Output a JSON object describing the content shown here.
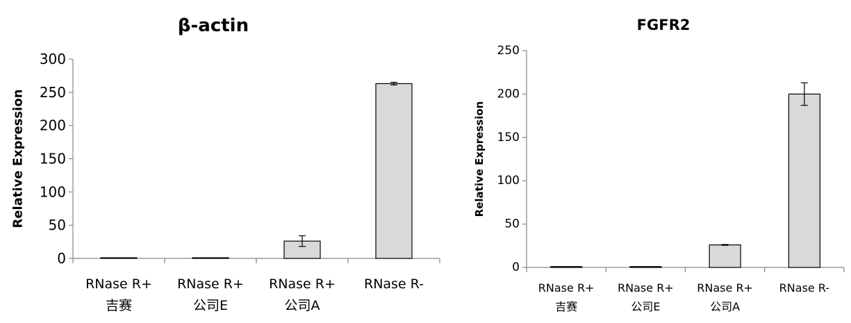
{
  "chart_data": [
    {
      "type": "bar",
      "title": "β-actin",
      "ylabel": "Relative Expression",
      "xlabel": "",
      "categories": [
        [
          "RNase R+",
          "吉赛"
        ],
        [
          "RNase R+",
          "公司E"
        ],
        [
          "RNase R+",
          "公司A"
        ],
        [
          "RNase R-"
        ]
      ],
      "values": [
        1,
        1,
        26,
        263
      ],
      "errors": [
        0,
        0,
        8,
        2
      ],
      "ylim": [
        0,
        300
      ],
      "yticks": [
        0,
        50,
        100,
        150,
        200,
        250,
        300
      ],
      "grid": false,
      "colors": {
        "bar": "#d9d9d9",
        "bar_edge": "#000000",
        "axis": "#868686"
      }
    },
    {
      "type": "bar",
      "title": "FGFR2",
      "ylabel": "Relative Expression",
      "xlabel": "",
      "categories": [
        [
          "RNase R+",
          "吉赛"
        ],
        [
          "RNase R+",
          "公司E"
        ],
        [
          "RNase R+",
          "公司A"
        ],
        [
          "RNase R-"
        ]
      ],
      "values": [
        1,
        1,
        26,
        200
      ],
      "errors": [
        0,
        0,
        0.5,
        13
      ],
      "ylim": [
        0,
        250
      ],
      "yticks": [
        0,
        50,
        100,
        150,
        200,
        250
      ],
      "grid": false,
      "colors": {
        "bar": "#d9d9d9",
        "bar_edge": "#000000",
        "axis": "#868686"
      }
    }
  ]
}
